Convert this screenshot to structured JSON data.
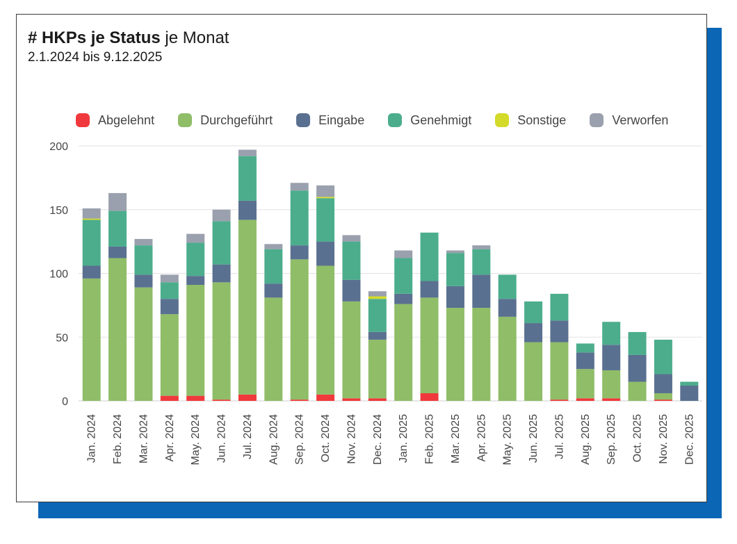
{
  "header": {
    "title_hash": "#",
    "title_bold": "HKPs je Status",
    "title_rest": "je Monat",
    "subtitle": "2.1.2024 bis 9.12.2025"
  },
  "colors": {
    "Abgelehnt": "#f0393c",
    "Durchgeführt": "#8fbd68",
    "Eingabe": "#5a7090",
    "Genehmigt": "#4cad8c",
    "Sonstige": "#d4da2a",
    "Verworfen": "#9aa0ad",
    "frame_shadow": "#0b66b6"
  },
  "chart_data": {
    "type": "bar",
    "stacked": true,
    "title": "# HKPs je Status je Monat",
    "subtitle": "2.1.2024 bis 9.12.2025",
    "xlabel": "",
    "ylabel": "",
    "ylim": [
      0,
      200
    ],
    "yticks": [
      0,
      50,
      100,
      150,
      200
    ],
    "grid": true,
    "legend_position": "top",
    "categories": [
      "Jan. 2024",
      "Feb. 2024",
      "Mar. 2024",
      "Apr. 2024",
      "May. 2024",
      "Jun. 2024",
      "Jul. 2024",
      "Aug. 2024",
      "Sep. 2024",
      "Oct. 2024",
      "Nov. 2024",
      "Dec. 2024",
      "Jan. 2025",
      "Feb. 2025",
      "Mar. 2025",
      "Apr. 2025",
      "May. 2025",
      "Jun. 2025",
      "Jul. 2025",
      "Aug. 2025",
      "Sep. 2025",
      "Oct. 2025",
      "Nov. 2025",
      "Dec. 2025"
    ],
    "series": [
      {
        "name": "Abgelehnt",
        "values": [
          0,
          0,
          0,
          4,
          4,
          1,
          5,
          0,
          1,
          5,
          2,
          2,
          0,
          6,
          0,
          0,
          0,
          0,
          1,
          2,
          2,
          0,
          1,
          0
        ]
      },
      {
        "name": "Durchgeführt",
        "values": [
          96,
          112,
          89,
          64,
          87,
          92,
          137,
          81,
          110,
          101,
          76,
          46,
          76,
          75,
          73,
          73,
          66,
          46,
          45,
          23,
          22,
          15,
          5,
          0
        ]
      },
      {
        "name": "Eingabe",
        "values": [
          10,
          9,
          10,
          12,
          7,
          14,
          15,
          11,
          11,
          19,
          17,
          6,
          8,
          13,
          17,
          26,
          14,
          15,
          17,
          13,
          20,
          21,
          15,
          12
        ]
      },
      {
        "name": "Genehmigt",
        "values": [
          36,
          28,
          23,
          13,
          26,
          34,
          35,
          27,
          43,
          34,
          30,
          26,
          28,
          38,
          26,
          20,
          19,
          17,
          21,
          7,
          18,
          18,
          27,
          3
        ]
      },
      {
        "name": "Sonstige",
        "values": [
          1,
          0,
          0,
          0,
          0,
          0,
          0,
          0,
          0,
          1,
          0,
          2,
          0,
          0,
          0,
          0,
          0,
          0,
          0,
          0,
          0,
          0,
          0,
          0
        ]
      },
      {
        "name": "Verworfen",
        "values": [
          8,
          14,
          5,
          6,
          7,
          9,
          5,
          4,
          6,
          9,
          5,
          4,
          6,
          0,
          2,
          3,
          0,
          0,
          0,
          0,
          0,
          0,
          0,
          0
        ]
      }
    ]
  }
}
